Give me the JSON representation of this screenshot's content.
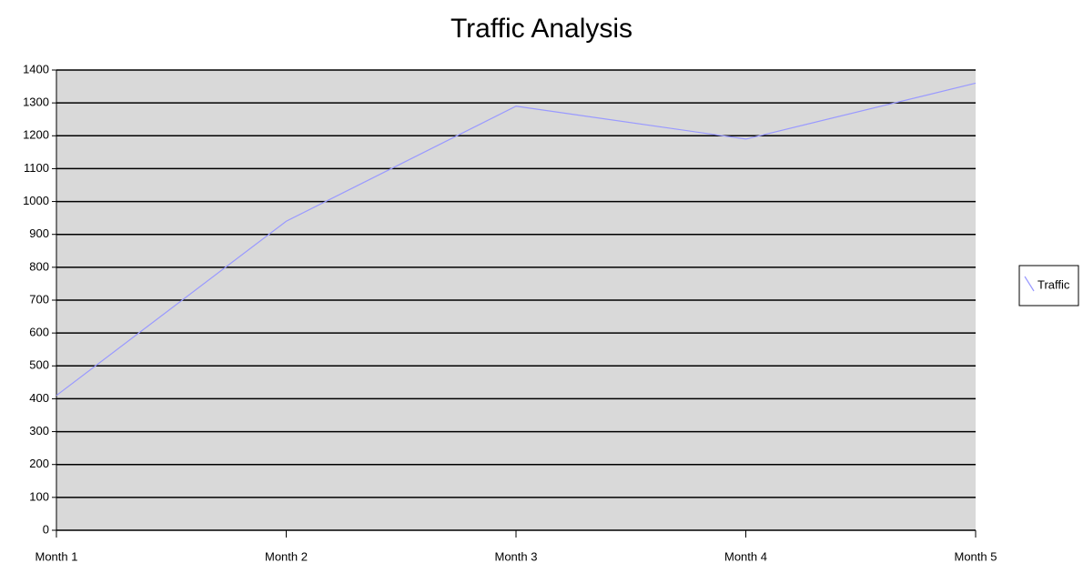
{
  "chart_data": {
    "type": "line",
    "title": "Traffic Analysis",
    "categories": [
      "Month 1",
      "Month 2",
      "Month 3",
      "Month 4",
      "Month 5"
    ],
    "series": [
      {
        "name": "Traffic",
        "color": "#9999ff",
        "values": [
          410,
          940,
          1290,
          1190,
          1360
        ]
      }
    ],
    "ylim": [
      0,
      1400
    ],
    "yticks": [
      0,
      100,
      200,
      300,
      400,
      500,
      600,
      700,
      800,
      900,
      1000,
      1100,
      1200,
      1300,
      1400
    ],
    "grid": true,
    "legend": "right",
    "plot_background": "#d9d9d9"
  }
}
